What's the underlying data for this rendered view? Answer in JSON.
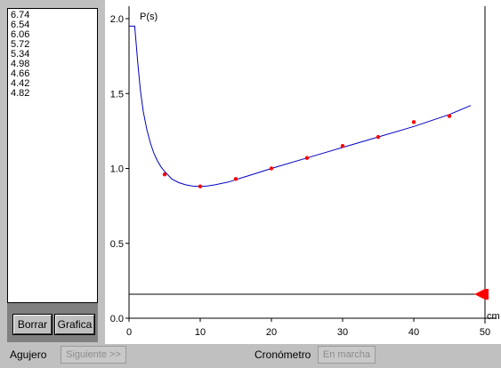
{
  "list": {
    "values": [
      "6.74",
      "6.54",
      "6.06",
      "5.72",
      "5.34",
      "4.98",
      "4.66",
      "4.42",
      "4.82"
    ]
  },
  "buttons": {
    "borrar": "Borrar",
    "grafica": "Grafica"
  },
  "bottom": {
    "agujero_label": "Agujero",
    "siguiente_label": "Siguiente >>",
    "cronometro_label": "Cronómetro",
    "en_marcha_label": "En marcha"
  },
  "chart_data": {
    "type": "scatter",
    "ylabel": "P(s)",
    "xlabel": "cm",
    "xlim": [
      0,
      50
    ],
    "ylim": [
      0,
      2.05
    ],
    "x_ticks": [
      "0",
      "10",
      "20",
      "30",
      "40",
      "50"
    ],
    "y_ticks": [
      "0.0",
      "0.5",
      "1.0",
      "1.5",
      "2.0"
    ],
    "points": {
      "x": [
        5,
        10,
        15,
        20,
        25,
        30,
        35,
        40,
        45
      ],
      "y": [
        0.96,
        0.88,
        0.93,
        1.0,
        1.07,
        1.15,
        1.21,
        1.31,
        1.35
      ]
    },
    "fit_curve": {
      "x": [
        0.0,
        0.8,
        1.2,
        1.6,
        2.0,
        2.5,
        3.0,
        3.5,
        4.0,
        4.5,
        5.0,
        6.0,
        7.0,
        8.0,
        9.0,
        10.0,
        11.0,
        12.0,
        14.0,
        16.0,
        18.0,
        20.0,
        25.0,
        30.0,
        35.0,
        40.0,
        45.0,
        48.0
      ],
      "y": [
        1.95,
        1.95,
        1.72,
        1.52,
        1.38,
        1.26,
        1.17,
        1.1,
        1.05,
        1.01,
        0.98,
        0.93,
        0.905,
        0.89,
        0.882,
        0.88,
        0.883,
        0.89,
        0.91,
        0.94,
        0.97,
        1.0,
        1.07,
        1.14,
        1.21,
        1.28,
        1.36,
        1.42
      ]
    },
    "marker_line_y": 0.16,
    "grid": false,
    "colors": {
      "points": "#ff0000",
      "curve": "#0000c0",
      "marker": "#ff0000"
    }
  }
}
